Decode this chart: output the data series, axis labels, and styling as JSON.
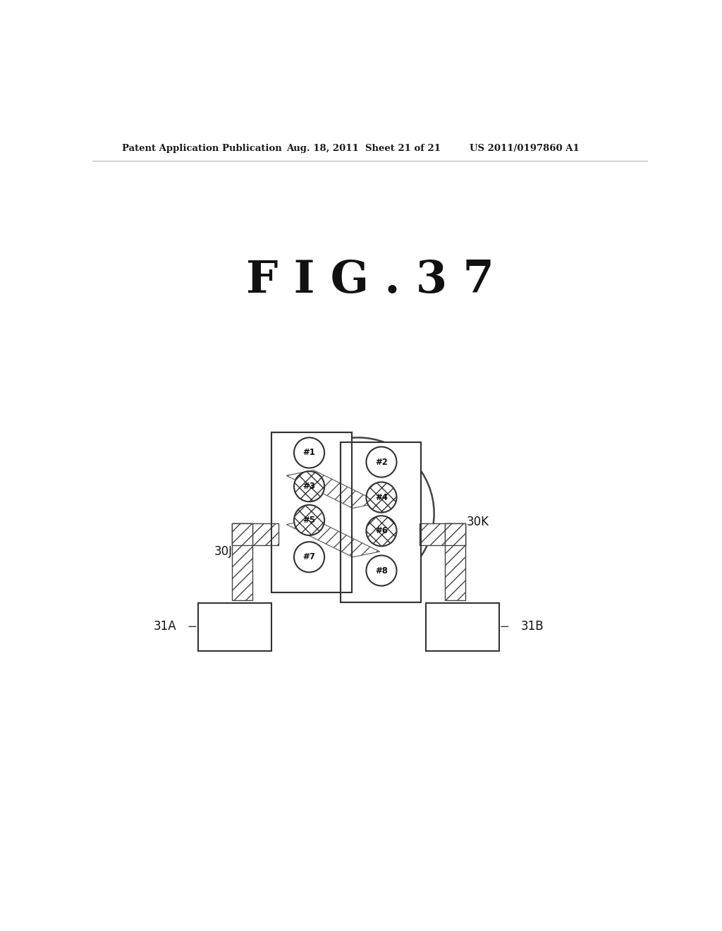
{
  "title": "F I G . 3 7",
  "header_left": "Patent Application Publication",
  "header_mid": "Aug. 18, 2011  Sheet 21 of 21",
  "header_right": "US 2011/0197860 A1",
  "background": "#ffffff",
  "label_30J": "30J",
  "label_30K": "30K",
  "label_31A": "31A",
  "label_31B": "31B"
}
